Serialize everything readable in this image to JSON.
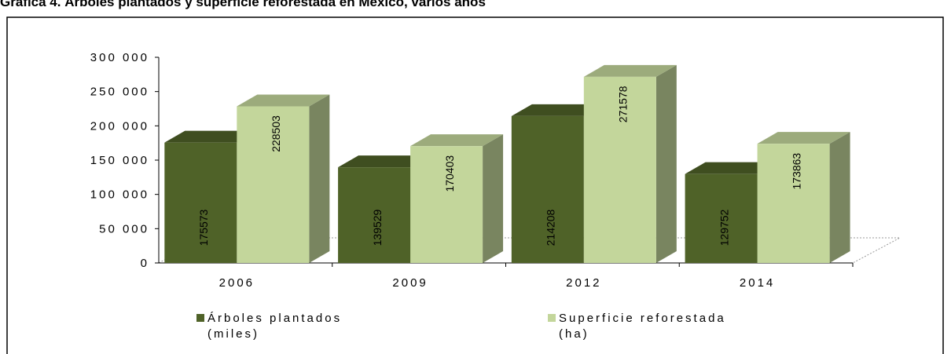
{
  "chart_data": {
    "type": "bar3d",
    "title": "Gráfica 4. Árboles plantados y superficie reforestada en México, varios años",
    "categories": [
      "2006",
      "2009",
      "2012",
      "2014"
    ],
    "series": [
      {
        "name": "Árboles plantados (miles)",
        "color": "#4f6228",
        "values": [
          175573,
          139529,
          214208,
          129752
        ]
      },
      {
        "name": "Superficie reforestada (ha)",
        "color": "#c3d69b",
        "values": [
          228503,
          170403,
          271578,
          173863
        ]
      }
    ],
    "ylim": [
      0,
      300000
    ],
    "yticks": [
      0,
      {
        "value": 50000,
        "label": "50 000"
      },
      {
        "value": 100000,
        "label": "100 000"
      },
      {
        "value": 150000,
        "label": "150 000"
      },
      {
        "value": 200000,
        "label": "200 000"
      },
      {
        "value": 250000,
        "label": "250 000"
      },
      {
        "value": 300000,
        "label": "300 000"
      }
    ],
    "legend": "bottom"
  }
}
